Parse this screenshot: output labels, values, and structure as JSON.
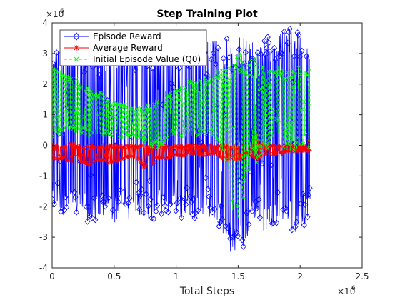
{
  "chart_data": {
    "type": "line",
    "title": "Step Training Plot",
    "xlabel": "Total Steps",
    "ylabel": "",
    "x_multiplier_label": "×10",
    "x_multiplier_exp": "6",
    "y_multiplier_label": "×10",
    "y_multiplier_exp": "6",
    "xlim": [
      0,
      2.5
    ],
    "ylim": [
      -4,
      4
    ],
    "x_units": "×10^6 steps",
    "y_units": "×10^6",
    "xticks": [
      0,
      0.5,
      1,
      1.5,
      2,
      2.5
    ],
    "xtick_labels": [
      "0",
      "0.5",
      "1",
      "1.5",
      "2",
      "2.5"
    ],
    "yticks": [
      -4,
      -3,
      -2,
      -1,
      0,
      1,
      2,
      3,
      4
    ],
    "ytick_labels": [
      "-4",
      "-3",
      "-2",
      "-1",
      "0",
      "1",
      "2",
      "3",
      "4"
    ],
    "grid": false,
    "legend_position": "top-left",
    "data_x_range": [
      0,
      2.08
    ],
    "series": [
      {
        "name": "Episode Reward",
        "color": "#0000ff",
        "marker": "diamond",
        "line": "solid",
        "x": [
          0,
          0.05,
          0.1,
          0.15,
          0.2,
          0.25,
          0.3,
          0.35,
          0.4,
          0.45,
          0.5,
          0.55,
          0.6,
          0.65,
          0.7,
          0.75,
          0.8,
          0.85,
          0.9,
          0.95,
          1.0,
          1.05,
          1.1,
          1.15,
          1.2,
          1.25,
          1.3,
          1.35,
          1.4,
          1.45,
          1.5,
          1.55,
          1.6,
          1.65,
          1.7,
          1.75,
          1.8,
          1.85,
          1.9,
          1.95,
          2.0,
          2.05,
          2.08
        ],
        "upper": [
          3.4,
          3.3,
          3.4,
          3.6,
          3.3,
          3.2,
          3.3,
          3.5,
          3.2,
          3.3,
          3.2,
          3.3,
          3.1,
          3.2,
          3.1,
          3.3,
          3.2,
          3.4,
          3.2,
          3.3,
          3.4,
          3.5,
          3.3,
          3.4,
          3.6,
          3.5,
          3.5,
          3.4,
          3.5,
          3.6,
          3.5,
          3.6,
          3.5,
          3.4,
          3.5,
          3.6,
          3.5,
          3.7,
          3.8,
          3.9,
          3.7,
          3.6,
          3.6
        ],
        "lower": [
          -2.0,
          -2.2,
          -2.3,
          -2.2,
          -2.3,
          -2.3,
          -2.6,
          -2.5,
          -2.4,
          -2.3,
          -2.6,
          -2.2,
          -2.4,
          -2.5,
          -2.3,
          -2.3,
          -2.5,
          -2.3,
          -2.3,
          -2.2,
          -2.4,
          -2.4,
          -2.3,
          -2.4,
          -2.3,
          -2.2,
          -2.6,
          -2.7,
          -3.3,
          -3.6,
          -3.4,
          -3.6,
          -2.5,
          -2.4,
          -2.9,
          -2.6,
          -2.6,
          -2.4,
          -2.5,
          -3.0,
          -2.8,
          -2.5,
          -2.0
        ]
      },
      {
        "name": "Average Reward",
        "color": "#ff0000",
        "marker": "asterisk",
        "line": "solid",
        "x": [
          0,
          0.05,
          0.1,
          0.15,
          0.2,
          0.25,
          0.3,
          0.35,
          0.4,
          0.45,
          0.5,
          0.55,
          0.6,
          0.65,
          0.7,
          0.75,
          0.8,
          0.85,
          0.9,
          0.95,
          1.0,
          1.05,
          1.1,
          1.15,
          1.2,
          1.25,
          1.3,
          1.35,
          1.4,
          1.45,
          1.5,
          1.55,
          1.6,
          1.65,
          1.7,
          1.75,
          1.8,
          1.85,
          1.9,
          1.95,
          2.0,
          2.05,
          2.08
        ],
        "upper": [
          0.1,
          0.0,
          0.0,
          0.1,
          0.0,
          0.0,
          0.0,
          0.0,
          0.0,
          0.0,
          0.0,
          0.0,
          0.0,
          0.0,
          0.0,
          0.0,
          0.0,
          0.0,
          0.0,
          0.0,
          0.0,
          0.0,
          0.0,
          0.0,
          0.0,
          0.0,
          0.0,
          0.0,
          0.0,
          0.0,
          0.0,
          0.0,
          0.0,
          0.4,
          0.0,
          0.0,
          0.0,
          0.0,
          0.0,
          0.0,
          0.0,
          0.0,
          0.3
        ],
        "lower": [
          -0.5,
          -0.5,
          -0.4,
          -0.6,
          -0.5,
          -0.6,
          -0.7,
          -0.5,
          -0.5,
          -0.6,
          -0.6,
          -0.5,
          -0.4,
          -0.4,
          -0.5,
          -0.8,
          -0.7,
          -0.4,
          -0.5,
          -0.4,
          -0.3,
          -0.4,
          -0.3,
          -0.3,
          -0.4,
          -0.3,
          -0.3,
          -0.4,
          -0.5,
          -0.4,
          -0.6,
          -0.4,
          -0.3,
          -0.5,
          -0.3,
          -0.3,
          -0.3,
          -0.3,
          -0.2,
          -0.2,
          -0.2,
          -0.2,
          -0.2
        ]
      },
      {
        "name": "Initial Episode Value (Q0)",
        "color": "#00ff00",
        "marker": "x",
        "line": "dashed",
        "x": [
          0,
          0.05,
          0.1,
          0.15,
          0.2,
          0.25,
          0.3,
          0.35,
          0.4,
          0.45,
          0.5,
          0.55,
          0.6,
          0.65,
          0.7,
          0.75,
          0.8,
          0.85,
          0.9,
          0.95,
          1.0,
          1.05,
          1.1,
          1.15,
          1.2,
          1.25,
          1.3,
          1.35,
          1.4,
          1.45,
          1.5,
          1.55,
          1.6,
          1.65,
          1.7,
          1.75,
          1.8,
          1.85,
          1.9,
          1.95,
          2.0,
          2.05,
          2.08
        ],
        "upper": [
          2.7,
          2.5,
          2.4,
          2.3,
          2.2,
          2.0,
          1.9,
          1.8,
          1.7,
          1.5,
          1.5,
          1.4,
          1.3,
          1.2,
          1.2,
          1.3,
          1.4,
          1.5,
          1.6,
          1.8,
          1.9,
          2.0,
          2.1,
          2.1,
          2.2,
          2.3,
          2.4,
          2.6,
          2.7,
          2.5,
          3.4,
          2.6,
          2.8,
          3.1,
          2.6,
          2.5,
          2.6,
          2.6,
          2.5,
          2.5,
          2.6,
          2.6,
          2.5
        ],
        "lower": [
          0.2,
          0.3,
          0.3,
          0.4,
          0.4,
          0.4,
          0.3,
          0.3,
          0.3,
          0.3,
          0.3,
          0.2,
          0.2,
          0.3,
          0.2,
          0.0,
          -0.1,
          -0.1,
          0.0,
          0.2,
          0.3,
          0.2,
          0.3,
          0.3,
          0.3,
          0.2,
          0.2,
          -0.1,
          -0.5,
          -2.2,
          -2.6,
          -1.6,
          -0.4,
          -0.6,
          -0.3,
          -0.2,
          0.1,
          0.0,
          -0.2,
          -0.3,
          -0.1,
          0.0,
          -0.2
        ]
      }
    ]
  }
}
